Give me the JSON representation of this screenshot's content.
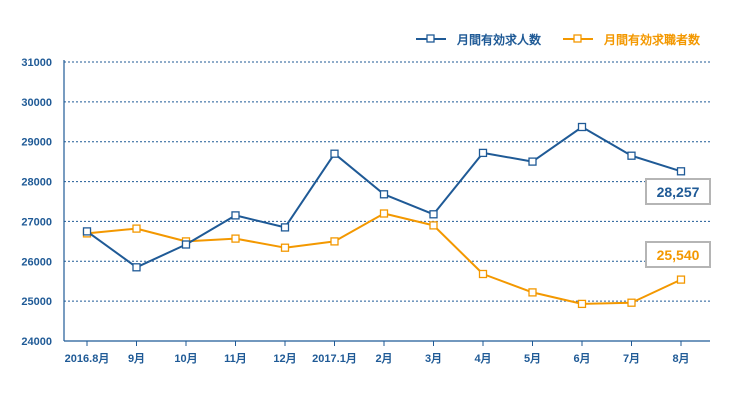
{
  "chart_data": {
    "type": "line",
    "categories": [
      "2016.8月",
      "9月",
      "10月",
      "11月",
      "12月",
      "2017.1月",
      "2月",
      "3月",
      "4月",
      "5月",
      "6月",
      "7月",
      "8月"
    ],
    "ylim": [
      24000,
      31000
    ],
    "yticks": [
      24000,
      25000,
      26000,
      27000,
      28000,
      29000,
      30000,
      31000
    ],
    "grid": "horizontal dotted",
    "legend_position": "top-right",
    "series": [
      {
        "name": "月間有効求人数",
        "color": "#1f5a96",
        "values": [
          26750,
          25850,
          26420,
          27150,
          26850,
          28700,
          27680,
          27180,
          28720,
          28500,
          29370,
          28650,
          28257
        ],
        "end_label": "28,257"
      },
      {
        "name": "月間有効求職者数",
        "color": "#f39800",
        "values": [
          26700,
          26820,
          26500,
          26570,
          26340,
          26500,
          27200,
          26900,
          25680,
          25220,
          24930,
          24960,
          25540
        ],
        "end_label": "25,540"
      }
    ]
  }
}
